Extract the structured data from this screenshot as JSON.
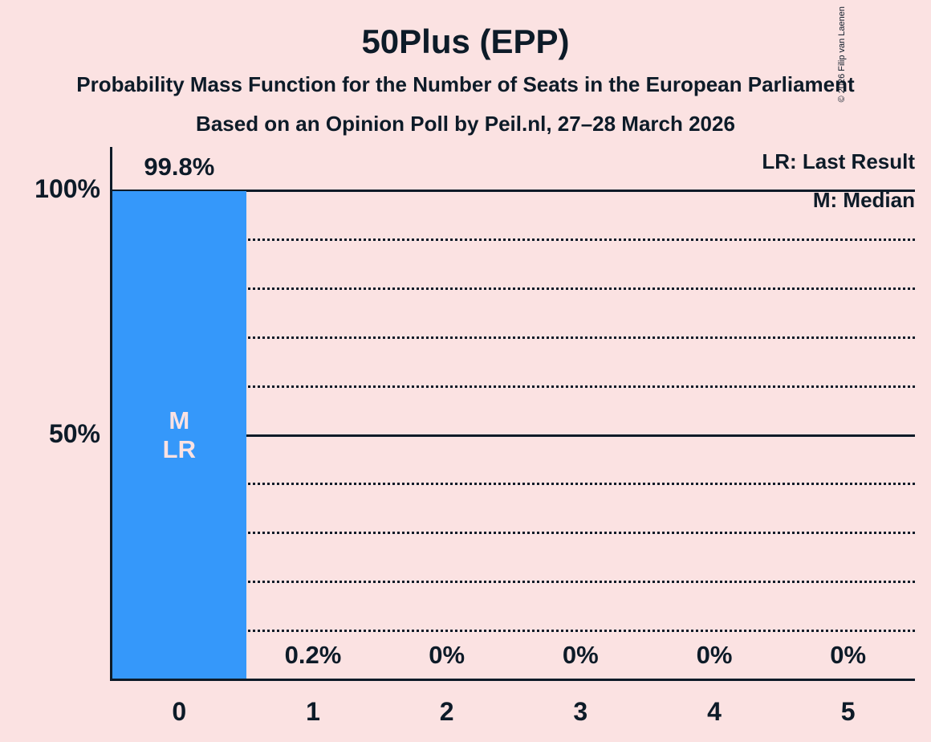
{
  "title": "50Plus (EPP)",
  "subtitle_line1": "Probability Mass Function for the Number of Seats in the European Parliament",
  "subtitle_line2": "Based on an Opinion Poll by Peil.nl, 27–28 March 2026",
  "copyright": "© 2026 Filip van Laenen",
  "legend": {
    "last_result": "LR: Last Result",
    "median": "M: Median"
  },
  "colors": {
    "background": "#fbe2e2",
    "bar": "#3598fa",
    "text": "#0d1b28"
  },
  "chart_data": {
    "type": "bar",
    "title": "50Plus (EPP)",
    "categories": [
      "0",
      "1",
      "2",
      "3",
      "4",
      "5"
    ],
    "values": [
      99.8,
      0.2,
      0,
      0,
      0,
      0
    ],
    "value_labels": [
      "99.8%",
      "0.2%",
      "0%",
      "0%",
      "0%",
      "0%"
    ],
    "xlabel": "",
    "ylabel": "",
    "ylim": [
      0,
      100
    ],
    "y_ticks": [
      {
        "label": "100%",
        "value": 100
      },
      {
        "label": "50%",
        "value": 50
      }
    ],
    "gridlines": {
      "dotted_values": [
        10,
        20,
        30,
        40,
        60,
        70,
        80,
        90
      ],
      "solid_values": [
        50,
        100
      ]
    },
    "legend_position": "top-right",
    "annotations": [
      {
        "category_index": 0,
        "lines": [
          "M",
          "LR"
        ],
        "meaning": "Median and Last Result at 0 seats"
      }
    ]
  }
}
